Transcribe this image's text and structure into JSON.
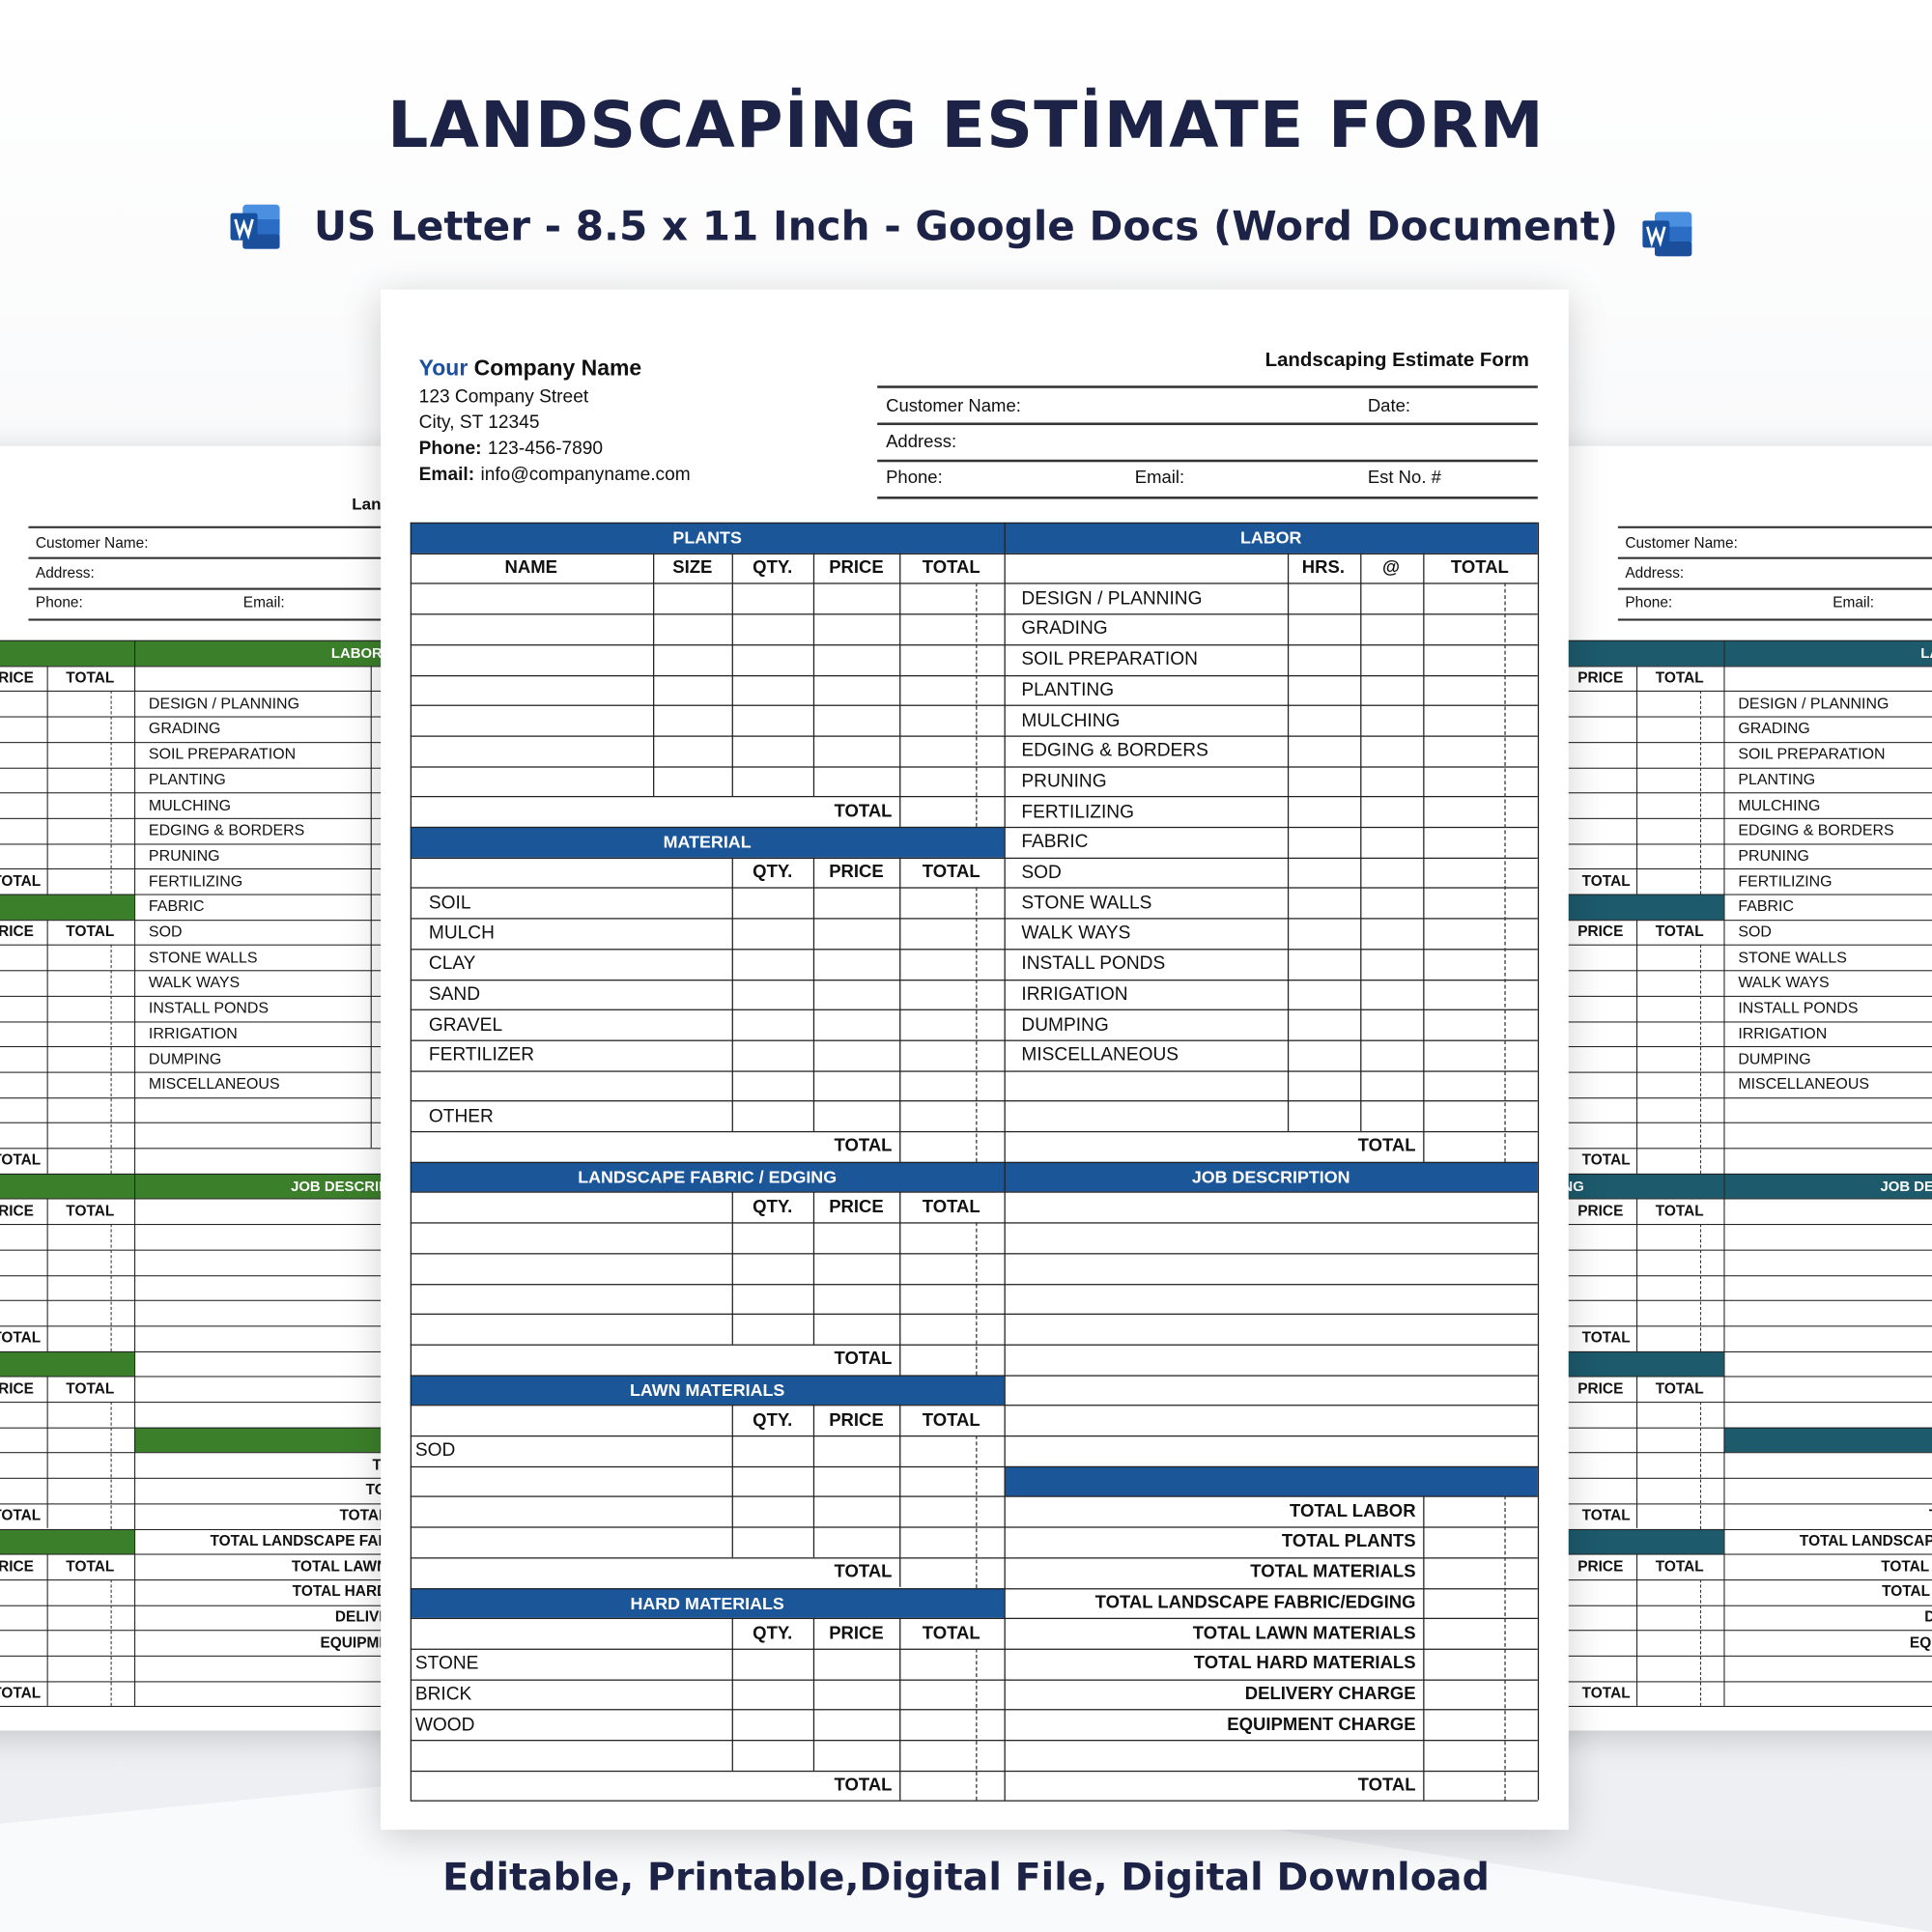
{
  "header": {
    "title": "LANDSCAPİNG ESTİMATE FORM",
    "subtitle": "US Letter - 8.5 x 11 Inch - Google Docs (Word Document)",
    "footer": "Editable, Printable,Digital File, Digital Download"
  },
  "form": {
    "company": {
      "accent": "Your",
      "name": "Company Name",
      "street": "123 Company Street",
      "city": "City, ST 12345",
      "phone_label": "Phone:",
      "phone": "123-456-7890",
      "email_label": "Email:",
      "email": "info@companyname.com"
    },
    "title": "Landscaping Estimate Form",
    "fields": {
      "customer_name": "Customer Name:",
      "date": "Date:",
      "address": "Address:",
      "phone": "Phone:",
      "email": "Email:",
      "est_no": "Est No. #"
    },
    "plants": {
      "title": "PLANTS",
      "columns": [
        "NAME",
        "SIZE",
        "QTY.",
        "PRICE",
        "TOTAL"
      ],
      "total": "TOTAL"
    },
    "material": {
      "title": "MATERIAL",
      "columns": [
        "QTY.",
        "PRICE",
        "TOTAL"
      ],
      "items": [
        "SOIL",
        "MULCH",
        "CLAY",
        "SAND",
        "GRAVEL",
        "FERTILIZER"
      ],
      "other": "OTHER",
      "total": "TOTAL"
    },
    "fabric": {
      "title": "LANDSCAPE FABRIC / EDGING",
      "columns": [
        "QTY.",
        "PRICE",
        "TOTAL"
      ],
      "total": "TOTAL"
    },
    "lawn": {
      "title": "LAWN MATERIALS",
      "columns": [
        "QTY.",
        "PRICE",
        "TOTAL"
      ],
      "items": [
        "SOD"
      ],
      "total": "TOTAL"
    },
    "hard": {
      "title": "HARD MATERIALS",
      "columns": [
        "QTY.",
        "PRICE",
        "TOTAL"
      ],
      "items": [
        "STONE",
        "BRICK",
        "WOOD"
      ],
      "total": "TOTAL"
    },
    "labor": {
      "title": "LABOR",
      "columns": [
        "HRS.",
        "@",
        "TOTAL"
      ],
      "items": [
        "DESIGN / PLANNING",
        "GRADING",
        "SOIL PREPARATION",
        "PLANTING",
        "MULCHING",
        "EDGING & BORDERS",
        "PRUNING",
        "FERTILIZING",
        "FABRIC",
        "SOD",
        "STONE WALLS",
        "WALK WAYS",
        "INSTALL PONDS",
        "IRRIGATION",
        "DUMPING",
        "MISCELLANEOUS"
      ],
      "total": "TOTAL"
    },
    "job": {
      "title": "JOB DESCRIPTION"
    },
    "summary": {
      "items": [
        "TOTAL LABOR",
        "TOTAL PLANTS",
        "TOTAL MATERIALS",
        "TOTAL LANDSCAPE FABRIC/EDGING",
        "TOTAL LAWN MATERIALS",
        "TOTAL HARD MATERIALS",
        "DELIVERY CHARGE",
        "EQUIPMENT CHARGE"
      ],
      "total": "TOTAL"
    }
  }
}
